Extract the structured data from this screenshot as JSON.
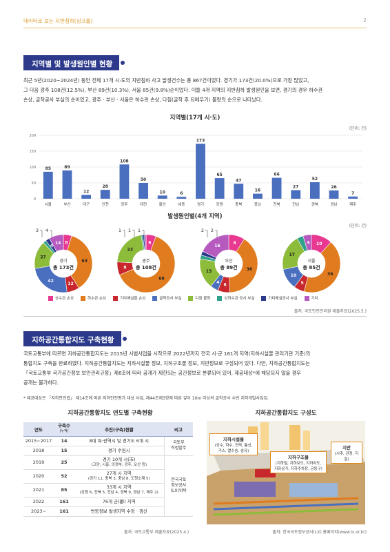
{
  "header": {
    "title": "데이터로 보는 지반침하(싱크홀)",
    "page": "2"
  },
  "section1": {
    "title": "지역별 및 발생원인별 현황",
    "para": [
      "최근 5년(2020~2024년) 동안 전체 17개 시·도의 지반침하 사고 발생건수는 총 867건이었다. 경기가 173건(20.0%)으로 가장 많았고,",
      "그 다음 광주 108건(12.5%), 부산 89건(10.3%), 서울 85건(9.8%)순이었다. 이들 4개 지역의 지반침하 발생원인을 보면, 경기의 경우 하수관",
      "손상, 굴착공사 부실의 순이었고, 광주 · 부산 · 서울은 하수관 손상, 다짐(굴착 후 되메우기) 불량의 순으로 나타났다."
    ]
  },
  "chart_data": [
    {
      "type": "bar",
      "title": "지역별(17개 시·도)",
      "unit": "(단위: 건)",
      "categories": [
        "서울",
        "부산",
        "대구",
        "인천",
        "광주",
        "대전",
        "울산",
        "세종",
        "경기",
        "강원",
        "충북",
        "충남",
        "전북",
        "전남",
        "경북",
        "경남",
        "제주"
      ],
      "values": [
        85,
        89,
        12,
        28,
        108,
        50,
        10,
        6,
        173,
        65,
        47,
        16,
        66,
        27,
        52,
        26,
        7
      ],
      "ylim": [
        0,
        200
      ],
      "yticks": [
        0,
        50,
        100,
        150,
        200
      ],
      "color": "#4a6fbf",
      "grid": true
    },
    {
      "type": "pie",
      "title": "발생원인별(4개 지역)",
      "unit": "(단위: 건)",
      "legend": [
        {
          "name": "상수관 손상",
          "color": "#e8388f"
        },
        {
          "name": "하수관 손상",
          "color": "#e07b1f"
        },
        {
          "name": "기타매설물 손상",
          "color": "#c8282d"
        },
        {
          "name": "굴착공사 부실",
          "color": "#4a6fbf"
        },
        {
          "name": "다짐 불량",
          "color": "#8dbb3a"
        },
        {
          "name": "상하수관 공사 부실",
          "color": "#2fa28c"
        },
        {
          "name": "기타매설공사 부실",
          "color": "#2d3a8c"
        },
        {
          "name": "기타",
          "color": "#b65ac0"
        }
      ],
      "donuts": [
        {
          "name": "경기",
          "total": "총 173건",
          "slices": [
            {
              "v": 8,
              "c": "#e8388f"
            },
            {
              "v": 63,
              "c": "#e07b1f"
            },
            {
              "v": 12,
              "c": "#c8282d"
            },
            {
              "v": 42,
              "c": "#4a6fbf"
            },
            {
              "v": 27,
              "c": "#8dbb3a"
            },
            {
              "v": 3,
              "c": "#2fa28c"
            },
            {
              "v": 4,
              "c": "#2d3a8c"
            },
            {
              "v": 14,
              "c": "#b65ac0"
            }
          ]
        },
        {
          "name": "광주",
          "total": "총 108건",
          "slices": [
            {
              "v": 6,
              "c": "#e8388f"
            },
            {
              "v": 68,
              "c": "#e07b1f"
            },
            {
              "v": 8,
              "c": "#c8282d"
            },
            {
              "v": 0,
              "c": "#4a6fbf"
            },
            {
              "v": 23,
              "c": "#8dbb3a"
            },
            {
              "v": 1,
              "c": "#2fa28c"
            },
            {
              "v": 1,
              "c": "#2d3a8c"
            },
            {
              "v": 1,
              "c": "#b65ac0"
            }
          ]
        },
        {
          "name": "부산",
          "total": "총 89건",
          "slices": [
            {
              "v": 8,
              "c": "#e8388f"
            },
            {
              "v": 36,
              "c": "#e07b1f"
            },
            {
              "v": 6,
              "c": "#c8282d"
            },
            {
              "v": 4,
              "c": "#4a6fbf"
            },
            {
              "v": 15,
              "c": "#8dbb3a"
            },
            {
              "v": 2,
              "c": "#2fa28c"
            },
            {
              "v": 2,
              "c": "#2d3a8c"
            },
            {
              "v": 16,
              "c": "#b65ac0"
            }
          ]
        },
        {
          "name": "서울",
          "total": "총 85건",
          "slices": [
            {
              "v": 10,
              "c": "#e8388f"
            },
            {
              "v": 36,
              "c": "#e07b1f"
            },
            {
              "v": 5,
              "c": "#c8282d"
            },
            {
              "v": 10,
              "c": "#4a6fbf"
            },
            {
              "v": 17,
              "c": "#8dbb3a"
            },
            {
              "v": 3,
              "c": "#2fa28c"
            },
            {
              "v": 0,
              "c": "#2d3a8c"
            },
            {
              "v": 4,
              "c": "#b65ac0"
            }
          ]
        }
      ],
      "outside_labels": [
        [
          "3",
          "4"
        ],
        [
          "1",
          "1",
          "1"
        ],
        [
          "2",
          "2"
        ],
        []
      ]
    }
  ],
  "chart_source": "출처: 국토안전관리원 제출자료(2025.5.)",
  "section2": {
    "title": "지하공간통합지도 구축현황",
    "para": [
      "국토교통부에 따르면 지하공간통합지도는 2015년 시범사업을 시작으로 2022년까지 전국 시·군 161개 지역(지하시설물 관리기관 기준)의",
      "통합지도 구축을 완료하였다. 지하공간통합지도는 지하시설물 정보, 지하구조물 정보, 지반정보로 구성되어 있다. 다만, 지하공간통합지도는",
      "「국토교통부 국가공간정보 보안관리규정」제6조에 따라 공개가 제한되는 공간정보로 분류되어 있어, 제공대상*에 해당되지 않을 경우",
      "공개는 불가하다."
    ],
    "note": "* 제공대상은 「지하안전법」 제14조에 따른 지하안전평가 대상 사업, 제44조제3항에 따른 깊이 10m 이상의 굴착공사 수반 지하개발사업임."
  },
  "table": {
    "title": "지하공간통합지도 연도별 구축현황",
    "headers": [
      "연도",
      "구축수",
      "(누적)",
      "추진(구축)현황",
      "비고"
    ],
    "rows": [
      {
        "year": "2015~2017",
        "count": "14",
        "desc": [
          "8대 특·광역시 및 경기도 6개 시"
        ]
      },
      {
        "year": "2018",
        "count": "15",
        "desc": [
          "경기 수원시"
        ]
      },
      {
        "year": "2019",
        "count": "25",
        "desc": [
          "경기 10개 시(市)",
          "(고양, 시흥, 의정부, 광주, 오산 등)"
        ]
      },
      {
        "year": "2020",
        "count": "52",
        "desc": [
          "27개 시 지역",
          "(경기 11, 충북 3, 충남 8, 도청소재 5)"
        ]
      },
      {
        "year": "2021",
        "count": "85",
        "desc": [
          "33개 시 지역",
          "(강원 6, 전북 5, 전남 4, 경북 9, 경남 7, 제주 2)"
        ]
      },
      {
        "year": "2022",
        "count": "161",
        "desc": [
          "76개 군(郡) 지역"
        ]
      },
      {
        "year": "2023~",
        "count": "161",
        "desc": [
          "변동정보 발생지역 수정 · 갱신"
        ]
      }
    ],
    "org1": [
      "국토부",
      "직접발주"
    ],
    "org2": [
      "한국국토",
      "정보공사",
      "(LX)위탁"
    ],
    "source": "출처: 국토교통부 제출자료(2025.4.)"
  },
  "diagram": {
    "title": "지하공간통합지도 구성도",
    "box1": {
      "title": "지하시설물",
      "text": [
        "(상수, 하수, 전력, 통신,",
        "가스, 열수송, 송유)"
      ]
    },
    "box2": {
      "title": "지하구조물",
      "text": [
        "(지하철, 지하보도, 지하차도,",
        "지하상가, 지하주차장, 공동구)"
      ]
    },
    "box3": {
      "title": "지반",
      "text": [
        "(시추, 관정, 지질)"
      ]
    },
    "source": "출처: 한국국토정보공사(LX) 홈페이지(www.lx.or.kr)"
  }
}
